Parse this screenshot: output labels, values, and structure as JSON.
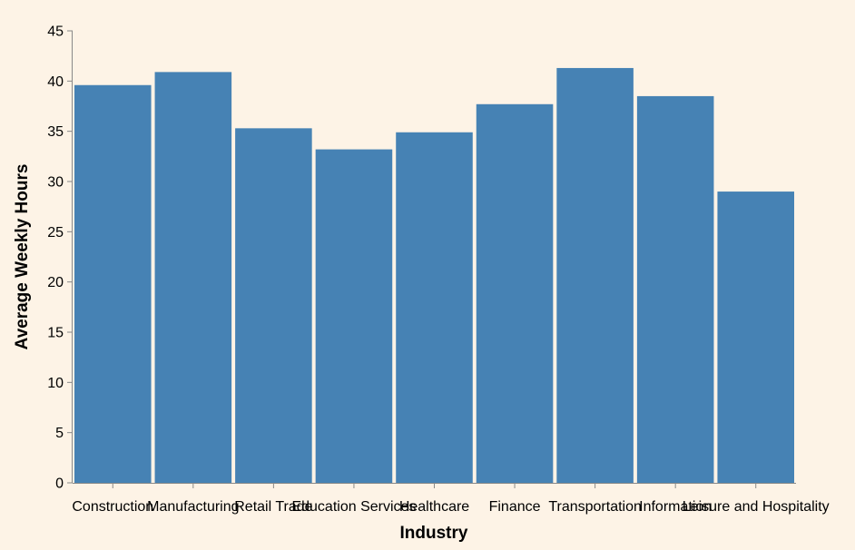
{
  "chart_data": {
    "type": "bar",
    "title": "",
    "xlabel": "Industry",
    "ylabel": "Average Weekly Hours",
    "ylim": [
      0,
      45
    ],
    "yticks": [
      0,
      5,
      10,
      15,
      20,
      25,
      30,
      35,
      40,
      45
    ],
    "grid": false,
    "legend": "none",
    "categories": [
      "Construction",
      "Manufacturing",
      "Retail Trade",
      "Education Services",
      "Healthcare",
      "Finance",
      "Transportation",
      "Information",
      "Leisure and Hospitality"
    ],
    "values": [
      39.6,
      40.9,
      35.3,
      33.2,
      34.9,
      37.7,
      41.3,
      38.5,
      29.0
    ],
    "colors": {
      "bar": "#4682b4",
      "axis": "#888888",
      "background": "#fdf3e6"
    }
  }
}
